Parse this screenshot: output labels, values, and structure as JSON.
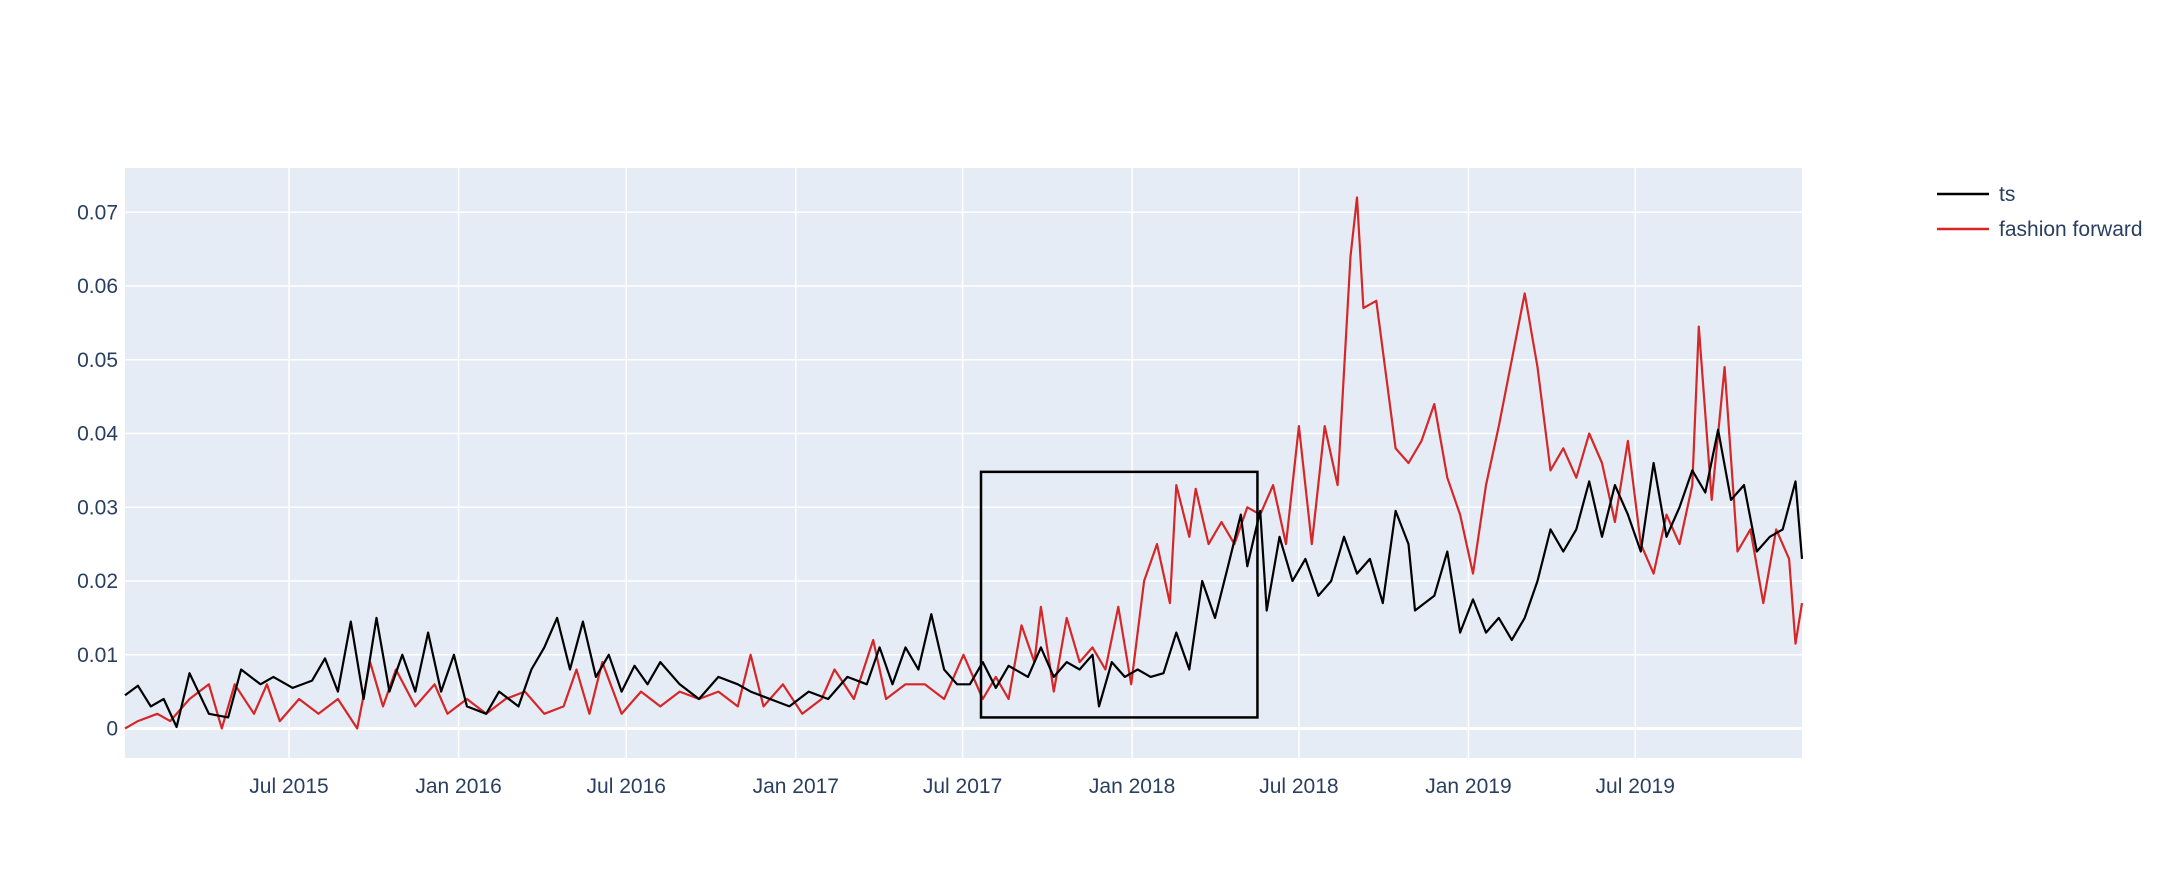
{
  "chart_data": {
    "type": "line",
    "title": "",
    "xlabel": "",
    "ylabel": "",
    "x_range": [
      "2015-01-04",
      "2019-12-29"
    ],
    "ylim": [
      -0.004,
      0.076
    ],
    "x_ticks": [
      {
        "date": "2015-07-01",
        "label": "Jul 2015"
      },
      {
        "date": "2016-01-01",
        "label": "Jan 2016"
      },
      {
        "date": "2016-07-01",
        "label": "Jul 2016"
      },
      {
        "date": "2017-01-01",
        "label": "Jan 2017"
      },
      {
        "date": "2017-07-01",
        "label": "Jul 2017"
      },
      {
        "date": "2018-01-01",
        "label": "Jan 2018"
      },
      {
        "date": "2018-07-01",
        "label": "Jul 2018"
      },
      {
        "date": "2019-01-01",
        "label": "Jan 2019"
      },
      {
        "date": "2019-07-01",
        "label": "Jul 2019"
      }
    ],
    "y_ticks": [
      {
        "value": 0,
        "label": "0"
      },
      {
        "value": 0.01,
        "label": "0.01"
      },
      {
        "value": 0.02,
        "label": "0.02"
      },
      {
        "value": 0.03,
        "label": "0.03"
      },
      {
        "value": 0.04,
        "label": "0.04"
      },
      {
        "value": 0.05,
        "label": "0.05"
      },
      {
        "value": 0.06,
        "label": "0.06"
      },
      {
        "value": 0.07,
        "label": "0.07"
      }
    ],
    "grid": true,
    "legend_position": "top-right",
    "plot_background": "#e5ecf6",
    "series": [
      {
        "name": "ts",
        "color": "#000000",
        "points": [
          [
            "2015-01-04",
            0.0045
          ],
          [
            "2015-01-18",
            0.0058
          ],
          [
            "2015-02-01",
            0.003
          ],
          [
            "2015-02-15",
            0.004
          ],
          [
            "2015-03-01",
            0.0002
          ],
          [
            "2015-03-15",
            0.0075
          ],
          [
            "2015-04-05",
            0.002
          ],
          [
            "2015-04-26",
            0.0015
          ],
          [
            "2015-05-10",
            0.008
          ],
          [
            "2015-05-31",
            0.006
          ],
          [
            "2015-06-14",
            0.007
          ],
          [
            "2015-07-05",
            0.0055
          ],
          [
            "2015-07-26",
            0.0065
          ],
          [
            "2015-08-09",
            0.0095
          ],
          [
            "2015-08-23",
            0.005
          ],
          [
            "2015-09-06",
            0.0145
          ],
          [
            "2015-09-20",
            0.004
          ],
          [
            "2015-10-04",
            0.015
          ],
          [
            "2015-10-18",
            0.005
          ],
          [
            "2015-11-01",
            0.01
          ],
          [
            "2015-11-15",
            0.005
          ],
          [
            "2015-11-29",
            0.013
          ],
          [
            "2015-12-13",
            0.005
          ],
          [
            "2015-12-27",
            0.01
          ],
          [
            "2016-01-10",
            0.003
          ],
          [
            "2016-01-31",
            0.002
          ],
          [
            "2016-02-14",
            0.005
          ],
          [
            "2016-03-06",
            0.003
          ],
          [
            "2016-03-20",
            0.008
          ],
          [
            "2016-04-03",
            0.011
          ],
          [
            "2016-04-17",
            0.015
          ],
          [
            "2016-05-01",
            0.008
          ],
          [
            "2016-05-15",
            0.0145
          ],
          [
            "2016-05-29",
            0.007
          ],
          [
            "2016-06-12",
            0.01
          ],
          [
            "2016-06-26",
            0.005
          ],
          [
            "2016-07-10",
            0.0085
          ],
          [
            "2016-07-24",
            0.006
          ],
          [
            "2016-08-07",
            0.009
          ],
          [
            "2016-08-28",
            0.006
          ],
          [
            "2016-09-18",
            0.004
          ],
          [
            "2016-10-09",
            0.007
          ],
          [
            "2016-10-30",
            0.006
          ],
          [
            "2016-11-13",
            0.005
          ],
          [
            "2016-12-04",
            0.004
          ],
          [
            "2016-12-25",
            0.003
          ],
          [
            "2017-01-15",
            0.005
          ],
          [
            "2017-02-05",
            0.004
          ],
          [
            "2017-02-26",
            0.007
          ],
          [
            "2017-03-19",
            0.006
          ],
          [
            "2017-04-02",
            0.011
          ],
          [
            "2017-04-16",
            0.006
          ],
          [
            "2017-04-30",
            0.011
          ],
          [
            "2017-05-14",
            0.008
          ],
          [
            "2017-05-28",
            0.0155
          ],
          [
            "2017-06-11",
            0.008
          ],
          [
            "2017-06-25",
            0.006
          ],
          [
            "2017-07-09",
            0.006
          ],
          [
            "2017-07-23",
            0.009
          ],
          [
            "2017-08-06",
            0.0055
          ],
          [
            "2017-08-20",
            0.0085
          ],
          [
            "2017-09-10",
            0.007
          ],
          [
            "2017-09-24",
            0.011
          ],
          [
            "2017-10-08",
            0.007
          ],
          [
            "2017-10-22",
            0.009
          ],
          [
            "2017-11-05",
            0.008
          ],
          [
            "2017-11-19",
            0.01
          ],
          [
            "2017-11-26",
            0.003
          ],
          [
            "2017-12-10",
            0.009
          ],
          [
            "2017-12-24",
            0.007
          ],
          [
            "2018-01-07",
            0.008
          ],
          [
            "2018-01-21",
            0.007
          ],
          [
            "2018-02-04",
            0.0075
          ],
          [
            "2018-02-18",
            0.013
          ],
          [
            "2018-03-04",
            0.008
          ],
          [
            "2018-03-18",
            0.02
          ],
          [
            "2018-04-01",
            0.015
          ],
          [
            "2018-04-15",
            0.022
          ],
          [
            "2018-04-29",
            0.029
          ],
          [
            "2018-05-06",
            0.022
          ],
          [
            "2018-05-20",
            0.0295
          ],
          [
            "2018-05-27",
            0.016
          ],
          [
            "2018-06-10",
            0.026
          ],
          [
            "2018-06-24",
            0.02
          ],
          [
            "2018-07-08",
            0.023
          ],
          [
            "2018-07-22",
            0.018
          ],
          [
            "2018-08-05",
            0.02
          ],
          [
            "2018-08-19",
            0.026
          ],
          [
            "2018-09-02",
            0.021
          ],
          [
            "2018-09-16",
            0.023
          ],
          [
            "2018-09-30",
            0.017
          ],
          [
            "2018-10-14",
            0.0295
          ],
          [
            "2018-10-28",
            0.025
          ],
          [
            "2018-11-04",
            0.016
          ],
          [
            "2018-11-25",
            0.018
          ],
          [
            "2018-12-09",
            0.024
          ],
          [
            "2018-12-23",
            0.013
          ],
          [
            "2019-01-06",
            0.0175
          ],
          [
            "2019-01-20",
            0.013
          ],
          [
            "2019-02-03",
            0.015
          ],
          [
            "2019-02-17",
            0.012
          ],
          [
            "2019-03-03",
            0.015
          ],
          [
            "2019-03-17",
            0.02
          ],
          [
            "2019-03-31",
            0.027
          ],
          [
            "2019-04-14",
            0.024
          ],
          [
            "2019-04-28",
            0.027
          ],
          [
            "2019-05-12",
            0.0335
          ],
          [
            "2019-05-26",
            0.026
          ],
          [
            "2019-06-09",
            0.033
          ],
          [
            "2019-06-23",
            0.029
          ],
          [
            "2019-07-07",
            0.024
          ],
          [
            "2019-07-21",
            0.036
          ],
          [
            "2019-08-04",
            0.026
          ],
          [
            "2019-08-18",
            0.03
          ],
          [
            "2019-09-01",
            0.035
          ],
          [
            "2019-09-15",
            0.032
          ],
          [
            "2019-09-29",
            0.0405
          ],
          [
            "2019-10-13",
            0.031
          ],
          [
            "2019-10-27",
            0.033
          ],
          [
            "2019-11-10",
            0.024
          ],
          [
            "2019-11-24",
            0.026
          ],
          [
            "2019-12-08",
            0.027
          ],
          [
            "2019-12-22",
            0.0335
          ],
          [
            "2019-12-29",
            0.023
          ]
        ]
      },
      {
        "name": "fashion forward",
        "color": "#d62728",
        "points": [
          [
            "2015-01-04",
            0.0
          ],
          [
            "2015-01-18",
            0.001
          ],
          [
            "2015-02-08",
            0.002
          ],
          [
            "2015-02-22",
            0.001
          ],
          [
            "2015-03-15",
            0.004
          ],
          [
            "2015-04-05",
            0.006
          ],
          [
            "2015-04-19",
            0.0
          ],
          [
            "2015-05-03",
            0.006
          ],
          [
            "2015-05-24",
            0.002
          ],
          [
            "2015-06-07",
            0.006
          ],
          [
            "2015-06-21",
            0.001
          ],
          [
            "2015-07-12",
            0.004
          ],
          [
            "2015-08-02",
            0.002
          ],
          [
            "2015-08-23",
            0.004
          ],
          [
            "2015-09-13",
            0.0
          ],
          [
            "2015-09-27",
            0.009
          ],
          [
            "2015-10-11",
            0.003
          ],
          [
            "2015-10-25",
            0.008
          ],
          [
            "2015-11-15",
            0.003
          ],
          [
            "2015-12-06",
            0.006
          ],
          [
            "2015-12-20",
            0.002
          ],
          [
            "2016-01-10",
            0.004
          ],
          [
            "2016-01-31",
            0.002
          ],
          [
            "2016-02-21",
            0.004
          ],
          [
            "2016-03-13",
            0.005
          ],
          [
            "2016-04-03",
            0.002
          ],
          [
            "2016-04-24",
            0.003
          ],
          [
            "2016-05-08",
            0.008
          ],
          [
            "2016-05-22",
            0.002
          ],
          [
            "2016-06-05",
            0.009
          ],
          [
            "2016-06-26",
            0.002
          ],
          [
            "2016-07-17",
            0.005
          ],
          [
            "2016-08-07",
            0.003
          ],
          [
            "2016-08-28",
            0.005
          ],
          [
            "2016-09-18",
            0.004
          ],
          [
            "2016-10-09",
            0.005
          ],
          [
            "2016-10-30",
            0.003
          ],
          [
            "2016-11-13",
            0.01
          ],
          [
            "2016-11-27",
            0.003
          ],
          [
            "2016-12-18",
            0.006
          ],
          [
            "2017-01-08",
            0.002
          ],
          [
            "2017-01-29",
            0.004
          ],
          [
            "2017-02-12",
            0.008
          ],
          [
            "2017-03-05",
            0.004
          ],
          [
            "2017-03-26",
            0.012
          ],
          [
            "2017-04-09",
            0.004
          ],
          [
            "2017-04-30",
            0.006
          ],
          [
            "2017-05-21",
            0.006
          ],
          [
            "2017-06-11",
            0.004
          ],
          [
            "2017-07-02",
            0.01
          ],
          [
            "2017-07-23",
            0.004
          ],
          [
            "2017-08-06",
            0.007
          ],
          [
            "2017-08-20",
            0.004
          ],
          [
            "2017-09-03",
            0.014
          ],
          [
            "2017-09-17",
            0.009
          ],
          [
            "2017-09-24",
            0.0165
          ],
          [
            "2017-10-08",
            0.005
          ],
          [
            "2017-10-22",
            0.015
          ],
          [
            "2017-11-05",
            0.009
          ],
          [
            "2017-11-19",
            0.011
          ],
          [
            "2017-12-03",
            0.008
          ],
          [
            "2017-12-17",
            0.0165
          ],
          [
            "2017-12-31",
            0.006
          ],
          [
            "2018-01-14",
            0.02
          ],
          [
            "2018-01-28",
            0.025
          ],
          [
            "2018-02-11",
            0.017
          ],
          [
            "2018-02-18",
            0.033
          ],
          [
            "2018-03-04",
            0.026
          ],
          [
            "2018-03-11",
            0.0325
          ],
          [
            "2018-03-25",
            0.025
          ],
          [
            "2018-04-08",
            0.028
          ],
          [
            "2018-04-22",
            0.025
          ],
          [
            "2018-05-06",
            0.03
          ],
          [
            "2018-05-20",
            0.029
          ],
          [
            "2018-06-03",
            0.033
          ],
          [
            "2018-06-17",
            0.025
          ],
          [
            "2018-07-01",
            0.041
          ],
          [
            "2018-07-15",
            0.025
          ],
          [
            "2018-07-29",
            0.041
          ],
          [
            "2018-08-12",
            0.033
          ],
          [
            "2018-08-26",
            0.064
          ],
          [
            "2018-09-02",
            0.072
          ],
          [
            "2018-09-09",
            0.057
          ],
          [
            "2018-09-23",
            0.058
          ],
          [
            "2018-10-14",
            0.038
          ],
          [
            "2018-10-28",
            0.036
          ],
          [
            "2018-11-11",
            0.039
          ],
          [
            "2018-11-25",
            0.044
          ],
          [
            "2018-12-09",
            0.034
          ],
          [
            "2018-12-23",
            0.029
          ],
          [
            "2019-01-06",
            0.021
          ],
          [
            "2019-01-20",
            0.033
          ],
          [
            "2019-02-03",
            0.041
          ],
          [
            "2019-02-17",
            0.05
          ],
          [
            "2019-03-03",
            0.059
          ],
          [
            "2019-03-17",
            0.049
          ],
          [
            "2019-03-31",
            0.035
          ],
          [
            "2019-04-14",
            0.038
          ],
          [
            "2019-04-28",
            0.034
          ],
          [
            "2019-05-12",
            0.04
          ],
          [
            "2019-05-26",
            0.036
          ],
          [
            "2019-06-09",
            0.028
          ],
          [
            "2019-06-23",
            0.039
          ],
          [
            "2019-07-07",
            0.025
          ],
          [
            "2019-07-21",
            0.021
          ],
          [
            "2019-08-04",
            0.029
          ],
          [
            "2019-08-18",
            0.025
          ],
          [
            "2019-09-01",
            0.033
          ],
          [
            "2019-09-08",
            0.0545
          ],
          [
            "2019-09-22",
            0.031
          ],
          [
            "2019-10-06",
            0.049
          ],
          [
            "2019-10-20",
            0.024
          ],
          [
            "2019-11-03",
            0.027
          ],
          [
            "2019-11-17",
            0.017
          ],
          [
            "2019-12-01",
            0.027
          ],
          [
            "2019-12-15",
            0.023
          ],
          [
            "2019-12-22",
            0.0115
          ],
          [
            "2019-12-29",
            0.017
          ]
        ]
      }
    ],
    "annotations": [
      {
        "type": "rectangle",
        "x0": "2017-07-21",
        "x1": "2018-05-17",
        "y0": 0.0015,
        "y1": 0.0348,
        "color": "#000000"
      }
    ]
  }
}
